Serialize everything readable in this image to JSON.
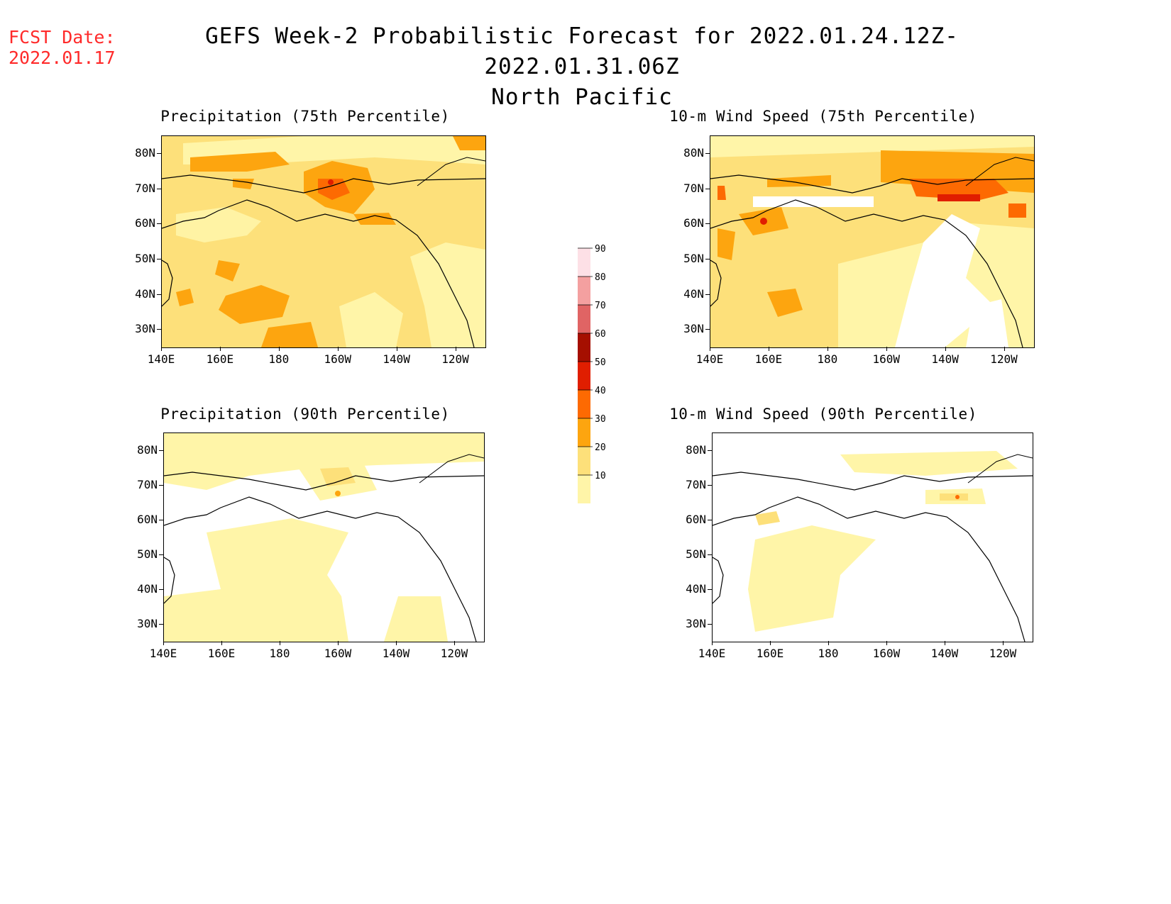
{
  "fcst": {
    "line1": "FCST Date:",
    "line2": "2022.01.17"
  },
  "title": {
    "line1": "GEFS Week-2 Probabilistic Forecast for 2022.01.24.12Z-2022.01.31.06Z",
    "line2": "North Pacific"
  },
  "panels": {
    "p1": {
      "title": "Precipitation (75th Percentile)"
    },
    "p2": {
      "title": "10-m Wind Speed (75th Percentile)"
    },
    "p3": {
      "title": "Precipitation (90th Percentile)"
    },
    "p4": {
      "title": "10-m Wind Speed (90th Percentile)"
    }
  },
  "axes": {
    "lat_labels": [
      "80N",
      "70N",
      "60N",
      "50N",
      "40N",
      "30N"
    ],
    "lon_labels": [
      "140E",
      "160E",
      "180",
      "160W",
      "140W",
      "120W"
    ],
    "lat_range": [
      25,
      85
    ],
    "lon_range": [
      140,
      250
    ]
  },
  "colorbar": {
    "levels": [
      "10",
      "20",
      "30",
      "40",
      "50",
      "60",
      "70",
      "80",
      "90"
    ],
    "colors": [
      "#fff5a8",
      "#fde07a",
      "#fda50f",
      "#fd6a02",
      "#e01e00",
      "#a50f00",
      "#e06464",
      "#f4a0a0",
      "#fde0e6"
    ]
  }
}
